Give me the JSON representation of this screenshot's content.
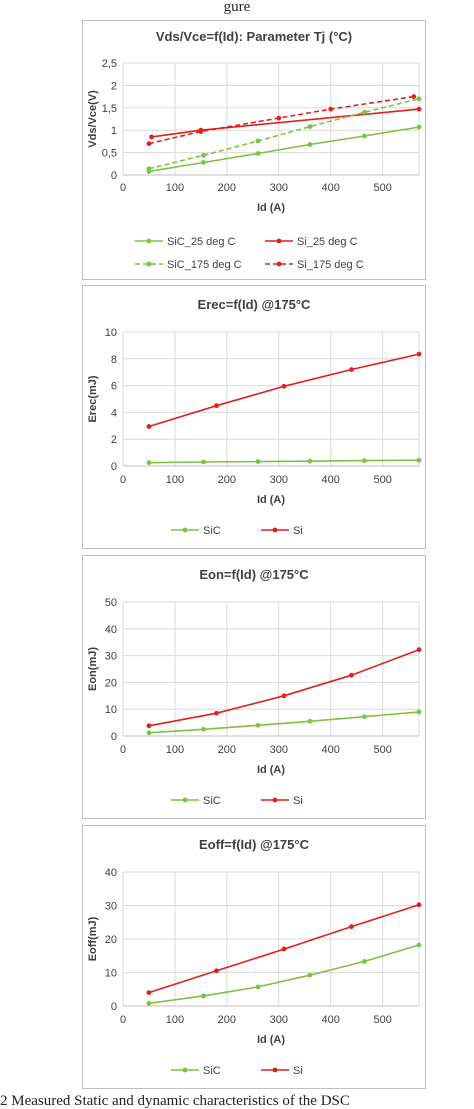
{
  "figure": {
    "top_caption": "gure",
    "bottom_caption": "2 Measured Static and dynamic characteristics of the DSC"
  },
  "colors": {
    "sic": "#7dc242",
    "si": "#e02020",
    "grid": "#d9d9d9",
    "text": "#404040"
  },
  "chart_data": [
    {
      "type": "line",
      "title": "Vds/Vce=f(Id): Parameter Tj (°C)",
      "xlabel": "Id (A)",
      "ylabel": "Vds/Vce(V)",
      "xlim": [
        0,
        570
      ],
      "ylim": [
        0,
        2.5
      ],
      "xticks": [
        0,
        100,
        200,
        300,
        400,
        500
      ],
      "yticks": [
        0,
        0.5,
        1,
        1.5,
        2,
        2.5
      ],
      "ytick_labels": [
        "0",
        "0,5",
        "1",
        "1,5",
        "2",
        "2,5"
      ],
      "grid": true,
      "legend": "bottom",
      "series": [
        {
          "name": "SiC_25 deg C",
          "color": "#7dc242",
          "dash": false,
          "x": [
            50,
            155,
            260,
            360,
            465,
            570
          ],
          "y": [
            0.08,
            0.28,
            0.48,
            0.68,
            0.87,
            1.07
          ]
        },
        {
          "name": "Si_25 deg C",
          "color": "#e02020",
          "dash": false,
          "x": [
            55,
            150,
            570
          ],
          "y": [
            0.85,
            1.0,
            1.47
          ]
        },
        {
          "name": "SiC_175 deg C",
          "color": "#7dc242",
          "dash": true,
          "x": [
            50,
            155,
            260,
            360,
            465,
            570
          ],
          "y": [
            0.14,
            0.44,
            0.76,
            1.08,
            1.4,
            1.7
          ]
        },
        {
          "name": "Si_175 deg C",
          "color": "#e02020",
          "dash": true,
          "x": [
            50,
            150,
            300,
            400,
            560
          ],
          "y": [
            0.7,
            0.97,
            1.27,
            1.47,
            1.75
          ]
        }
      ]
    },
    {
      "type": "line",
      "title": "Erec=f(Id) @175°C",
      "xlabel": "Id (A)",
      "ylabel": "Erec(mJ)",
      "xlim": [
        0,
        570
      ],
      "ylim": [
        0,
        10
      ],
      "xticks": [
        0,
        100,
        200,
        300,
        400,
        500
      ],
      "yticks": [
        0,
        2,
        4,
        6,
        8,
        10
      ],
      "ytick_labels": [
        "0",
        "2",
        "4",
        "6",
        "8",
        "10"
      ],
      "grid": true,
      "legend": "bottom",
      "series": [
        {
          "name": "SiC",
          "color": "#7dc242",
          "dash": false,
          "x": [
            50,
            155,
            260,
            360,
            465,
            570
          ],
          "y": [
            0.25,
            0.3,
            0.33,
            0.36,
            0.4,
            0.43
          ]
        },
        {
          "name": "Si",
          "color": "#e02020",
          "dash": false,
          "x": [
            50,
            180,
            310,
            440,
            570
          ],
          "y": [
            2.95,
            4.5,
            5.95,
            7.2,
            8.35
          ]
        }
      ]
    },
    {
      "type": "line",
      "title": "Eon=f(Id) @175°C",
      "xlabel": "Id (A)",
      "ylabel": "Eon(mJ)",
      "xlim": [
        0,
        570
      ],
      "ylim": [
        0,
        50
      ],
      "xticks": [
        0,
        100,
        200,
        300,
        400,
        500
      ],
      "yticks": [
        0,
        10,
        20,
        30,
        40,
        50
      ],
      "ytick_labels": [
        "0",
        "10",
        "20",
        "30",
        "40",
        "50"
      ],
      "grid": true,
      "legend": "bottom",
      "series": [
        {
          "name": "SiC",
          "color": "#7dc242",
          "dash": false,
          "x": [
            50,
            155,
            260,
            360,
            465,
            570
          ],
          "y": [
            1.2,
            2.5,
            4.0,
            5.5,
            7.2,
            9.0
          ]
        },
        {
          "name": "Si",
          "color": "#e02020",
          "dash": false,
          "x": [
            50,
            180,
            310,
            440,
            570
          ],
          "y": [
            3.8,
            8.5,
            15.0,
            22.7,
            32.2
          ]
        }
      ]
    },
    {
      "type": "line",
      "title": "Eoff=f(Id) @175°C",
      "xlabel": "Id (A)",
      "ylabel": "Eoff(mJ)",
      "xlim": [
        0,
        570
      ],
      "ylim": [
        0,
        40
      ],
      "xticks": [
        0,
        100,
        200,
        300,
        400,
        500
      ],
      "yticks": [
        0,
        10,
        20,
        30,
        40
      ],
      "ytick_labels": [
        "0",
        "10",
        "20",
        "30",
        "40"
      ],
      "grid": true,
      "legend": "bottom",
      "series": [
        {
          "name": "SiC",
          "color": "#7dc242",
          "dash": false,
          "x": [
            50,
            155,
            260,
            360,
            465,
            570
          ],
          "y": [
            0.8,
            3.0,
            5.7,
            9.2,
            13.3,
            18.2
          ]
        },
        {
          "name": "Si",
          "color": "#e02020",
          "dash": false,
          "x": [
            50,
            180,
            310,
            440,
            570
          ],
          "y": [
            4.0,
            10.5,
            17.0,
            23.7,
            30.2
          ]
        }
      ]
    }
  ]
}
